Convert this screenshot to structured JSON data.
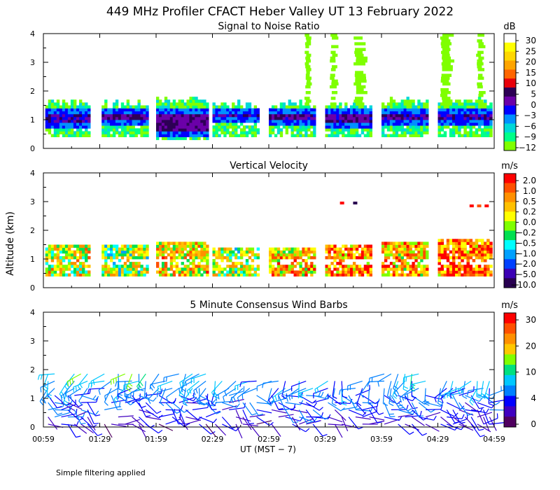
{
  "figure": {
    "title": "449 MHz Profiler CFACT Heber Valley UT 13 February 2022",
    "ylabel": "Altitude (km)",
    "xlabel": "UT  (MST − 7)",
    "footnote": "Simple filtering applied"
  },
  "chart_data": [
    {
      "type": "heatmap",
      "title": "Signal to Noise Ratio",
      "xlabel": "UT (MST − 7)",
      "ylabel": "Altitude (km)",
      "ylim": [
        0,
        4
      ],
      "yticks": [
        "0",
        "1",
        "2",
        "3",
        "4"
      ],
      "xlim": [
        "00:59",
        "04:59"
      ],
      "xticks": [
        "00:59",
        "01:29",
        "01:59",
        "02:29",
        "02:59",
        "03:29",
        "03:59",
        "04:29",
        "04:59"
      ],
      "colorbar": {
        "unit": "dB",
        "labels": [
          "30",
          "25",
          "20",
          "15",
          "10",
          "5",
          "0",
          "−3",
          "−6",
          "−9",
          "−12"
        ],
        "colors": [
          "#ffffff",
          "#ffff00",
          "#ffd700",
          "#ffa500",
          "#ff6600",
          "#e8000b",
          "#2d0055",
          "#6b00a8",
          "#0000ff",
          "#0090ff",
          "#00d8d8",
          "#00ff88",
          "#7fff00"
        ]
      },
      "segments": [
        {
          "start": "01:00",
          "end": "01:24",
          "base_km": 0.4,
          "top_km": 1.55,
          "core_km": [
            0.85,
            1.1
          ],
          "core_strength": 0.6
        },
        {
          "start": "01:30",
          "end": "01:55",
          "base_km": 0.4,
          "top_km": 1.5,
          "core_km": [
            0.9,
            1.1
          ],
          "core_strength": 0.9
        },
        {
          "start": "01:59",
          "end": "02:27",
          "base_km": 0.3,
          "top_km": 1.65,
          "core_km": [
            0.6,
            1.1
          ],
          "core_strength": 1.0
        },
        {
          "start": "02:29",
          "end": "02:54",
          "base_km": 0.4,
          "top_km": 1.5,
          "core_km": [
            1.0,
            1.15
          ],
          "core_strength": 0.5
        },
        {
          "start": "02:59",
          "end": "03:24",
          "base_km": 0.4,
          "top_km": 1.5,
          "core_km": [
            0.9,
            1.15
          ],
          "core_strength": 0.9
        },
        {
          "start": "03:29",
          "end": "03:54",
          "base_km": 0.4,
          "top_km": 1.5,
          "core_km": [
            0.8,
            1.1
          ],
          "core_strength": 0.9
        },
        {
          "start": "03:59",
          "end": "04:24",
          "base_km": 0.4,
          "top_km": 1.6,
          "core_km": [
            0.9,
            1.15
          ],
          "core_strength": 0.8
        },
        {
          "start": "04:29",
          "end": "04:58",
          "base_km": 0.4,
          "top_km": 1.6,
          "core_km": [
            0.9,
            1.15
          ],
          "core_strength": 0.7
        }
      ],
      "high_echo_columns": [
        {
          "time": "03:20",
          "top_km": 4.0,
          "dB": -12
        },
        {
          "time": "03:34",
          "top_km": 4.0,
          "dB": -12
        },
        {
          "time": "03:48",
          "top_km": 4.0,
          "dB": -12
        },
        {
          "time": "04:34",
          "top_km": 4.0,
          "dB": -12
        },
        {
          "time": "04:52",
          "top_km": 4.0,
          "dB": -12
        }
      ]
    },
    {
      "type": "heatmap",
      "title": "Vertical Velocity",
      "ylim": [
        0,
        4
      ],
      "yticks": [
        "0",
        "1",
        "2",
        "3",
        "4"
      ],
      "colorbar": {
        "unit": "m/s",
        "labels": [
          "2.0",
          "1.0",
          "0.5",
          "0.2",
          "0.0",
          "−0.2",
          "−0.5",
          "−1.0",
          "−2.0",
          "−5.0",
          "−10.0"
        ],
        "colors": [
          "#ff0000",
          "#ff5000",
          "#ff9000",
          "#ffc000",
          "#ffff00",
          "#7fff00",
          "#00e050",
          "#00ffff",
          "#00a0ff",
          "#0040ff",
          "#3c00b4",
          "#280050"
        ]
      },
      "segments": [
        {
          "start": "01:00",
          "end": "01:24",
          "base_km": 0.4,
          "top_km": 1.5,
          "mean_mps": 0.0
        },
        {
          "start": "01:30",
          "end": "01:55",
          "base_km": 0.4,
          "top_km": 1.5,
          "mean_mps": -0.3
        },
        {
          "start": "01:59",
          "end": "02:27",
          "base_km": 0.4,
          "top_km": 1.6,
          "mean_mps": 0.2
        },
        {
          "start": "02:29",
          "end": "02:54",
          "base_km": 0.4,
          "top_km": 1.4,
          "mean_mps": -0.2
        },
        {
          "start": "02:59",
          "end": "03:24",
          "base_km": 0.4,
          "top_km": 1.4,
          "mean_mps": 0.3
        },
        {
          "start": "03:29",
          "end": "03:54",
          "base_km": 0.4,
          "top_km": 1.5,
          "mean_mps": 0.6
        },
        {
          "start": "03:59",
          "end": "04:24",
          "base_km": 0.4,
          "top_km": 1.6,
          "mean_mps": 0.4
        },
        {
          "start": "04:29",
          "end": "04:58",
          "base_km": 0.4,
          "top_km": 1.7,
          "mean_mps": 0.8
        }
      ],
      "isolated_points": [
        {
          "time": "03:38",
          "alt_km": 2.95,
          "mps": 2.0
        },
        {
          "time": "03:45",
          "alt_km": 2.95,
          "mps": -5.0
        },
        {
          "time": "04:47",
          "alt_km": 2.85,
          "mps": 2.0
        },
        {
          "time": "04:51",
          "alt_km": 2.85,
          "mps": 1.0
        },
        {
          "time": "04:55",
          "alt_km": 2.85,
          "mps": 2.0
        }
      ]
    },
    {
      "type": "wind_barbs",
      "title": "5 Minute Consensus Wind Barbs",
      "ylim": [
        0,
        4
      ],
      "yticks": [
        "0",
        "1",
        "2",
        "3",
        "4"
      ],
      "colorbar": {
        "unit": "m/s",
        "labels": [
          "30",
          "20",
          "10",
          "4",
          "0"
        ],
        "colors": [
          "#ff0000",
          "#ff5000",
          "#ff9000",
          "#ffc800",
          "#80ff00",
          "#00e080",
          "#00c8ff",
          "#0080ff",
          "#0000ff",
          "#4000c0",
          "#500060"
        ]
      },
      "altitudes_km": [
        0.1,
        0.35,
        0.6,
        0.85,
        1.1,
        1.35,
        1.6,
        1.85
      ],
      "segments": [
        {
          "start": "01:00",
          "end": "01:24",
          "top_km": 1.85
        },
        {
          "start": "01:30",
          "end": "01:55",
          "top_km": 1.85
        },
        {
          "start": "01:59",
          "end": "02:27",
          "top_km": 1.85
        },
        {
          "start": "02:29",
          "end": "02:54",
          "top_km": 1.6
        },
        {
          "start": "02:59",
          "end": "03:24",
          "top_km": 1.6
        },
        {
          "start": "03:29",
          "end": "03:54",
          "top_km": 1.6
        },
        {
          "start": "03:59",
          "end": "04:24",
          "top_km": 1.85
        },
        {
          "start": "04:29",
          "end": "04:58",
          "top_km": 1.6
        }
      ],
      "speed_profile_mps": {
        "surface": 4,
        "mid": 6,
        "top": 12,
        "max": 20
      }
    }
  ]
}
